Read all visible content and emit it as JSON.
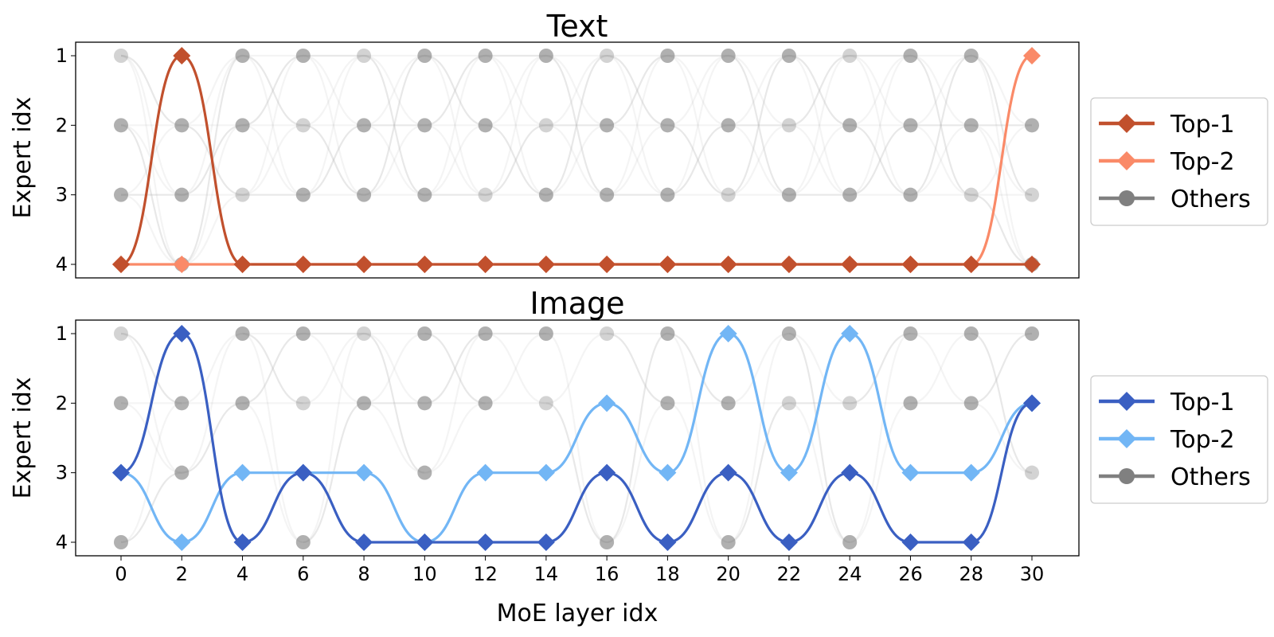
{
  "chart_data": [
    {
      "type": "line",
      "title": "Text",
      "ylabel": "Expert idx",
      "xlabel": "",
      "x": [
        0,
        2,
        4,
        6,
        8,
        10,
        12,
        14,
        16,
        18,
        20,
        22,
        24,
        26,
        28,
        30
      ],
      "y_ticks": [
        1,
        2,
        3,
        4
      ],
      "y_inverted": true,
      "x_ticks_shown": false,
      "legend": {
        "position": "right",
        "entries": [
          "Top-1",
          "Top-2",
          "Others"
        ]
      },
      "series": [
        {
          "name": "Top-1",
          "color": "#c1502d",
          "marker": "diamond",
          "values": [
            4,
            1,
            4,
            4,
            4,
            4,
            4,
            4,
            4,
            4,
            4,
            4,
            4,
            4,
            4,
            4
          ]
        },
        {
          "name": "Top-2",
          "color": "#fa8a68",
          "marker": "diamond",
          "values": [
            4,
            4,
            4,
            4,
            4,
            4,
            4,
            4,
            4,
            4,
            4,
            4,
            4,
            4,
            4,
            1
          ]
        },
        {
          "name": "Others",
          "color": "#808080",
          "marker": "circle",
          "values": [
            [
              1,
              2,
              3
            ],
            [
              2,
              3,
              4
            ],
            [
              1,
              2,
              3
            ],
            [
              1,
              2,
              3
            ],
            [
              1,
              2,
              3
            ],
            [
              1,
              2,
              3
            ],
            [
              1,
              2,
              3
            ],
            [
              1,
              2,
              3
            ],
            [
              1,
              2,
              3
            ],
            [
              1,
              2,
              3
            ],
            [
              1,
              2,
              3
            ],
            [
              1,
              2,
              3
            ],
            [
              1,
              2,
              3
            ],
            [
              1,
              2,
              3
            ],
            [
              1,
              2,
              3
            ],
            [
              2,
              3,
              4
            ]
          ]
        }
      ]
    },
    {
      "type": "line",
      "title": "Image",
      "ylabel": "Expert idx",
      "xlabel": "MoE layer idx",
      "x": [
        0,
        2,
        4,
        6,
        8,
        10,
        12,
        14,
        16,
        18,
        20,
        22,
        24,
        26,
        28,
        30
      ],
      "y_ticks": [
        1,
        2,
        3,
        4
      ],
      "y_inverted": true,
      "x_ticks_shown": true,
      "legend": {
        "position": "right",
        "entries": [
          "Top-1",
          "Top-2",
          "Others"
        ]
      },
      "series": [
        {
          "name": "Top-1",
          "color": "#3a5fc2",
          "marker": "diamond",
          "values": [
            3,
            1,
            4,
            3,
            4,
            4,
            4,
            4,
            3,
            4,
            3,
            4,
            3,
            4,
            4,
            2
          ]
        },
        {
          "name": "Top-2",
          "color": "#72b6f5",
          "marker": "diamond",
          "values": [
            3,
            4,
            3,
            3,
            3,
            4,
            3,
            3,
            2,
            3,
            1,
            3,
            1,
            3,
            3,
            2
          ]
        },
        {
          "name": "Others",
          "color": "#808080",
          "marker": "circle",
          "values": [
            [
              1,
              2,
              4
            ],
            [
              2,
              3
            ],
            [
              1,
              2
            ],
            [
              1,
              2,
              4
            ],
            [
              1,
              2
            ],
            [
              1,
              2,
              3
            ],
            [
              1,
              2
            ],
            [
              1,
              2
            ],
            [
              1,
              4
            ],
            [
              1,
              2
            ],
            [
              2,
              4
            ],
            [
              1,
              2
            ],
            [
              2,
              4
            ],
            [
              1,
              2
            ],
            [
              1,
              2
            ],
            [
              1,
              3
            ]
          ]
        }
      ]
    }
  ]
}
